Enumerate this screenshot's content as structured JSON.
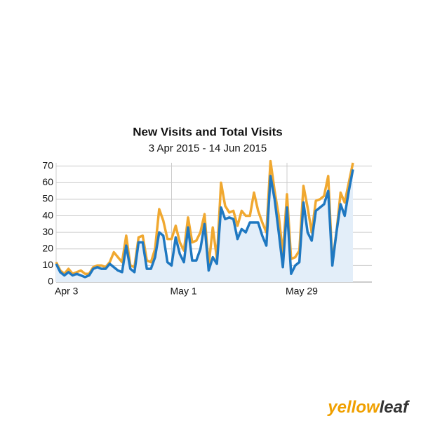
{
  "chart_data": {
    "type": "line",
    "title": "New Visits and Total Visits",
    "subtitle": "3 Apr 2015 - 14 Jun 2015",
    "categories": [
      "Apr 3",
      null,
      null,
      null,
      null,
      null,
      null,
      null,
      null,
      null,
      null,
      null,
      null,
      null,
      null,
      null,
      null,
      null,
      null,
      null,
      null,
      null,
      null,
      null,
      null,
      null,
      null,
      null,
      "May 1",
      null,
      null,
      null,
      null,
      null,
      null,
      null,
      null,
      null,
      null,
      null,
      null,
      null,
      null,
      null,
      null,
      null,
      null,
      null,
      null,
      null,
      null,
      null,
      null,
      null,
      null,
      null,
      "May 29",
      null,
      null,
      null,
      null,
      null,
      null,
      null,
      null,
      null,
      null,
      null,
      null,
      null,
      null,
      null,
      null
    ],
    "series": [
      {
        "name": "Total Visits",
        "color": "#f0a830",
        "values": [
          12,
          7,
          5,
          8,
          5,
          6,
          7,
          5,
          5,
          9,
          10,
          10,
          9,
          12,
          18,
          15,
          12,
          28,
          10,
          9,
          27,
          28,
          13,
          12,
          20,
          44,
          37,
          26,
          26,
          34,
          24,
          19,
          39,
          24,
          25,
          30,
          41,
          10,
          33,
          14,
          60,
          46,
          42,
          43,
          34,
          43,
          40,
          40,
          54,
          43,
          36,
          30,
          73,
          55,
          40,
          17,
          53,
          14,
          15,
          19,
          58,
          45,
          30,
          49,
          50,
          52,
          64,
          12,
          30,
          54,
          48,
          60,
          72
        ]
      },
      {
        "name": "New Visits",
        "color": "#1f78c1",
        "values": [
          11,
          6,
          4,
          6,
          4,
          5,
          4,
          3,
          4,
          8,
          9,
          8,
          8,
          11,
          9,
          7,
          6,
          22,
          8,
          6,
          24,
          24,
          8,
          8,
          15,
          30,
          28,
          12,
          10,
          27,
          17,
          12,
          33,
          13,
          13,
          20,
          35,
          7,
          15,
          11,
          45,
          38,
          39,
          38,
          26,
          32,
          30,
          36,
          36,
          36,
          28,
          22,
          64,
          50,
          30,
          9,
          45,
          5,
          10,
          12,
          48,
          30,
          25,
          43,
          45,
          47,
          55,
          10,
          30,
          47,
          40,
          55,
          68
        ]
      }
    ],
    "ylim": [
      0,
      72
    ],
    "yticks": [
      0,
      10,
      20,
      30,
      40,
      50,
      60,
      70
    ],
    "grid": true,
    "logo": {
      "part1": "yellow",
      "part2": "leaf"
    }
  }
}
